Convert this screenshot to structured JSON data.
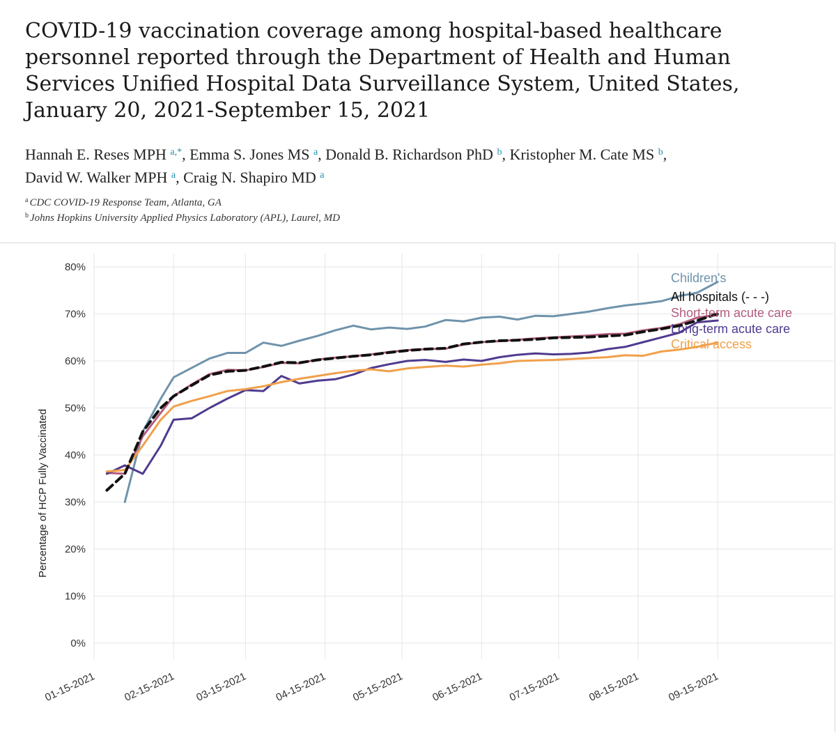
{
  "title": "COVID-19 vaccination coverage among hospital-based healthcare personnel reported through the Department of Health and Human Services Unified Hospital Data Surveillance System, United States, January 20, 2021-September 15, 2021",
  "authors": [
    {
      "name": "Hannah E. Reses MPH",
      "aff": "a,*"
    },
    {
      "name": "Emma S. Jones MS",
      "aff": "a"
    },
    {
      "name": "Donald B. Richardson PhD",
      "aff": "b"
    },
    {
      "name": "Kristopher M. Cate MS",
      "aff": "b"
    },
    {
      "name": "David W. Walker MPH",
      "aff": "a"
    },
    {
      "name": "Craig N. Shapiro MD",
      "aff": "a"
    }
  ],
  "affiliations": [
    {
      "key": "a",
      "text": "CDC COVID-19 Response Team, Atlanta, GA"
    },
    {
      "key": "b",
      "text": "Johns Hopkins University Applied Physics Laboratory (APL), Laurel, MD"
    }
  ],
  "chart_data": {
    "type": "line",
    "ylabel": "Percentage of HCP Fully Vaccinated",
    "xlabel": "",
    "ylim": [
      0,
      80
    ],
    "yticks": [
      "0%",
      "10%",
      "20%",
      "30%",
      "40%",
      "50%",
      "60%",
      "70%",
      "80%"
    ],
    "xticks": [
      "01-15-2021",
      "02-15-2021",
      "03-15-2021",
      "04-15-2021",
      "05-15-2021",
      "06-15-2021",
      "07-15-2021",
      "08-15-2021",
      "09-15-2021"
    ],
    "xlim": [
      "2021-01-15",
      "2021-10-30"
    ],
    "grid": true,
    "legend": "right-end labels",
    "series": [
      {
        "name": "Children's",
        "color": "#6f93ab",
        "dashed": false,
        "x": [
          "2021-01-27",
          "2021-02-03",
          "2021-02-10",
          "2021-02-15",
          "2021-02-22",
          "2021-03-01",
          "2021-03-08",
          "2021-03-15",
          "2021-03-22",
          "2021-03-29",
          "2021-04-05",
          "2021-04-12",
          "2021-04-19",
          "2021-04-26",
          "2021-05-03",
          "2021-05-10",
          "2021-05-17",
          "2021-05-24",
          "2021-06-01",
          "2021-06-08",
          "2021-06-15",
          "2021-06-22",
          "2021-06-29",
          "2021-07-06",
          "2021-07-13",
          "2021-07-20",
          "2021-07-27",
          "2021-08-03",
          "2021-08-10",
          "2021-08-17",
          "2021-08-24",
          "2021-08-31",
          "2021-09-07",
          "2021-09-15"
        ],
        "y": [
          30,
          45,
          52,
          56.5,
          58.5,
          60.5,
          61.7,
          61.7,
          63.9,
          63.2,
          64.3,
          65.3,
          66.5,
          67.5,
          66.7,
          67.1,
          66.8,
          67.3,
          68.7,
          68.4,
          69.2,
          69.4,
          68.8,
          69.6,
          69.5,
          70.0,
          70.5,
          71.2,
          71.8,
          72.2,
          72.7,
          73.8,
          74.5,
          76.8
        ]
      },
      {
        "name": "All hospitals (- - -)",
        "color": "#111111",
        "dashed": true,
        "x": [
          "2021-01-20",
          "2021-01-27",
          "2021-02-03",
          "2021-02-10",
          "2021-02-15",
          "2021-02-22",
          "2021-03-01",
          "2021-03-08",
          "2021-03-15",
          "2021-03-22",
          "2021-03-29",
          "2021-04-05",
          "2021-04-12",
          "2021-04-19",
          "2021-04-26",
          "2021-05-03",
          "2021-05-10",
          "2021-05-17",
          "2021-05-24",
          "2021-06-01",
          "2021-06-08",
          "2021-06-15",
          "2021-06-22",
          "2021-06-29",
          "2021-07-06",
          "2021-07-13",
          "2021-07-20",
          "2021-07-27",
          "2021-08-03",
          "2021-08-10",
          "2021-08-17",
          "2021-08-24",
          "2021-08-31",
          "2021-09-07",
          "2021-09-15"
        ],
        "y": [
          32.5,
          36,
          45,
          50,
          52.5,
          54.8,
          57,
          57.8,
          58,
          58.8,
          59.7,
          59.6,
          60.2,
          60.6,
          61,
          61.3,
          61.8,
          62.2,
          62.5,
          62.7,
          63.6,
          64,
          64.3,
          64.4,
          64.6,
          64.9,
          65,
          65.1,
          65.3,
          65.5,
          66.2,
          66.8,
          67.5,
          68.6,
          70
        ]
      },
      {
        "name": "Short-term acute care",
        "color": "#b35d7f",
        "dashed": false,
        "x": [
          "2021-01-20",
          "2021-01-27",
          "2021-02-03",
          "2021-02-10",
          "2021-02-15",
          "2021-02-22",
          "2021-03-01",
          "2021-03-08",
          "2021-03-15",
          "2021-03-22",
          "2021-03-29",
          "2021-04-05",
          "2021-04-12",
          "2021-04-19",
          "2021-04-26",
          "2021-05-03",
          "2021-05-10",
          "2021-05-17",
          "2021-05-24",
          "2021-06-01",
          "2021-06-08",
          "2021-06-15",
          "2021-06-22",
          "2021-06-29",
          "2021-07-06",
          "2021-07-13",
          "2021-07-20",
          "2021-07-27",
          "2021-08-03",
          "2021-08-10",
          "2021-08-17",
          "2021-08-24",
          "2021-08-31",
          "2021-09-07",
          "2021-09-15"
        ],
        "y": [
          36.2,
          36,
          44,
          49,
          52.5,
          55,
          57.2,
          58.1,
          58,
          58.7,
          59.6,
          59.5,
          60.3,
          60.7,
          61,
          61.4,
          61.9,
          62.3,
          62.5,
          62.6,
          63.5,
          64,
          64.2,
          64.5,
          64.8,
          65,
          65.2,
          65.4,
          65.7,
          65.8,
          66.5,
          67,
          67.8,
          69.2,
          69.8
        ]
      },
      {
        "name": "Long-term acute care",
        "color": "#4f3a8f",
        "dashed": false,
        "x": [
          "2021-01-20",
          "2021-01-27",
          "2021-02-03",
          "2021-02-10",
          "2021-02-15",
          "2021-02-22",
          "2021-03-01",
          "2021-03-08",
          "2021-03-15",
          "2021-03-22",
          "2021-03-29",
          "2021-04-05",
          "2021-04-12",
          "2021-04-19",
          "2021-04-26",
          "2021-05-03",
          "2021-05-10",
          "2021-05-17",
          "2021-05-24",
          "2021-06-01",
          "2021-06-08",
          "2021-06-15",
          "2021-06-22",
          "2021-06-29",
          "2021-07-06",
          "2021-07-13",
          "2021-07-20",
          "2021-07-27",
          "2021-08-03",
          "2021-08-10",
          "2021-08-17",
          "2021-08-24",
          "2021-08-31",
          "2021-09-07",
          "2021-09-15"
        ],
        "y": [
          36,
          37.8,
          36,
          42,
          47.5,
          47.8,
          50,
          52,
          53.8,
          53.6,
          56.8,
          55.2,
          55.8,
          56.1,
          57.1,
          58.5,
          59.3,
          60,
          60.2,
          59.8,
          60.3,
          60,
          60.8,
          61.3,
          61.6,
          61.4,
          61.5,
          61.8,
          62.5,
          63,
          64,
          65,
          66,
          68.2,
          68.6
        ]
      },
      {
        "name": "Critical access",
        "color": "#f0a04b",
        "dashed": false,
        "x": [
          "2021-01-20",
          "2021-01-27",
          "2021-02-03",
          "2021-02-10",
          "2021-02-15",
          "2021-02-22",
          "2021-03-01",
          "2021-03-08",
          "2021-03-15",
          "2021-03-22",
          "2021-03-29",
          "2021-04-05",
          "2021-04-12",
          "2021-04-19",
          "2021-04-26",
          "2021-05-03",
          "2021-05-10",
          "2021-05-17",
          "2021-05-24",
          "2021-06-01",
          "2021-06-08",
          "2021-06-15",
          "2021-06-22",
          "2021-06-29",
          "2021-07-06",
          "2021-07-13",
          "2021-07-20",
          "2021-07-27",
          "2021-08-03",
          "2021-08-10",
          "2021-08-17",
          "2021-08-24",
          "2021-08-31",
          "2021-09-07",
          "2021-09-15"
        ],
        "y": [
          36.5,
          36.8,
          42,
          47.5,
          50.3,
          51.5,
          52.5,
          53.6,
          54,
          54.6,
          55.5,
          56.2,
          56.8,
          57.4,
          57.9,
          58.2,
          57.8,
          58.4,
          58.7,
          59,
          58.8,
          59.2,
          59.5,
          60,
          60.1,
          60.2,
          60.4,
          60.6,
          60.8,
          61.2,
          61.1,
          62,
          62.4,
          63,
          63.9
        ]
      }
    ]
  }
}
